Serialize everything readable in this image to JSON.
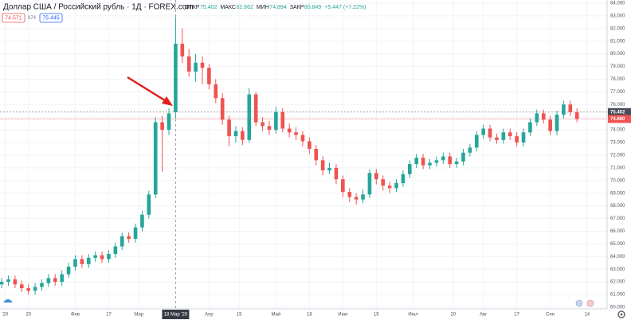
{
  "header": {
    "symbol": "Доллар США / Российский рубль · 1Д · FOREX.com",
    "ohlc": [
      {
        "label": "ОТКР",
        "value": "75.402"
      },
      {
        "label": "МАКС",
        "value": "82.862"
      },
      {
        "label": "МИН",
        "value": "74.894"
      },
      {
        "label": "ЗАКР",
        "value": "80.849"
      }
    ],
    "change": "+5.447 (+7.22%)",
    "bid": "74.571",
    "spread": "874",
    "ask": "75.445"
  },
  "chart_data": {
    "type": "candlestick",
    "up_color": "#26a69a",
    "down_color": "#ef5350",
    "grid": true,
    "x": [
      0,
      2,
      4,
      6,
      8,
      10,
      12,
      14,
      16,
      18,
      20,
      22,
      24,
      26,
      28,
      30,
      32,
      34,
      36,
      38,
      40,
      42,
      44,
      46,
      48,
      50,
      52,
      54,
      56,
      58,
      60,
      62,
      64,
      66,
      68,
      70,
      72,
      74,
      76,
      78,
      80,
      82,
      84,
      86,
      88,
      90,
      92,
      94,
      96,
      98,
      100,
      102,
      104,
      106,
      108,
      110,
      112,
      114,
      116,
      118,
      120,
      122,
      124,
      126,
      128,
      130,
      132,
      134,
      136,
      138,
      140,
      142,
      144,
      146,
      148,
      150,
      152,
      154,
      156,
      158,
      160,
      162,
      164,
      166,
      168,
      170,
      172
    ],
    "open": [
      61.8,
      62.0,
      62.2,
      61.8,
      61.5,
      61.3,
      61.6,
      61.9,
      62.3,
      62.0,
      62.6,
      63.2,
      63.8,
      63.4,
      63.9,
      64.1,
      63.8,
      64.2,
      64.8,
      65.6,
      65.4,
      66.3,
      67.3,
      68.9,
      74.6,
      74.0,
      75.4,
      80.8,
      79.8,
      78.6,
      79.3,
      78.9,
      77.6,
      76.5,
      74.8,
      73.5,
      73.9,
      73.2,
      76.8,
      74.6,
      74.3,
      74.0,
      75.4,
      74.1,
      73.8,
      73.6,
      73.1,
      72.5,
      71.6,
      70.8,
      71.0,
      70.1,
      69.1,
      68.7,
      68.5,
      68.9,
      70.6,
      70.1,
      69.6,
      69.4,
      69.8,
      70.5,
      71.3,
      71.8,
      71.2,
      71.4,
      71.6,
      71.9,
      71.3,
      71.5,
      72.2,
      72.6,
      73.6,
      74.1,
      73.4,
      73.2,
      73.8,
      73.5,
      73.0,
      73.8,
      74.6,
      75.3,
      74.8,
      73.9,
      75.2,
      76.0,
      75.4
    ],
    "high": [
      62.3,
      62.5,
      62.5,
      62.1,
      61.8,
      61.9,
      62.2,
      62.6,
      62.6,
      62.9,
      63.5,
      64.1,
      64.1,
      64.2,
      64.4,
      64.4,
      64.5,
      65.1,
      65.9,
      65.9,
      66.6,
      67.6,
      69.2,
      75.0,
      75.1,
      75.7,
      82.9,
      82.0,
      80.4,
      80.0,
      79.8,
      79.2,
      78.0,
      76.9,
      75.1,
      74.3,
      74.2,
      77.3,
      77.0,
      75.0,
      74.7,
      75.8,
      75.7,
      74.5,
      74.2,
      73.9,
      73.4,
      72.8,
      71.9,
      71.4,
      71.3,
      70.4,
      69.4,
      69.0,
      69.3,
      70.9,
      70.9,
      70.4,
      69.9,
      70.1,
      70.8,
      71.6,
      72.1,
      72.1,
      71.7,
      71.9,
      72.2,
      72.2,
      71.8,
      72.5,
      72.9,
      73.9,
      74.4,
      74.4,
      73.7,
      74.1,
      74.1,
      73.8,
      74.1,
      74.9,
      75.6,
      75.6,
      75.1,
      75.5,
      76.3,
      76.3,
      75.7
    ],
    "low": [
      61.5,
      61.7,
      61.5,
      61.2,
      61.0,
      61.0,
      61.3,
      61.6,
      61.7,
      61.7,
      62.3,
      62.9,
      63.1,
      63.1,
      63.6,
      63.5,
      63.5,
      63.9,
      64.5,
      65.1,
      65.1,
      66.0,
      67.0,
      68.6,
      70.7,
      73.6,
      74.9,
      79.3,
      78.2,
      77.8,
      77.6,
      77.2,
      76.1,
      74.4,
      72.7,
      73.0,
      72.8,
      73.0,
      74.3,
      73.9,
      73.6,
      73.7,
      73.8,
      73.4,
      73.2,
      72.7,
      72.1,
      71.2,
      70.4,
      70.5,
      69.7,
      68.7,
      68.3,
      68.1,
      68.2,
      68.6,
      69.7,
      69.2,
      69.0,
      69.1,
      69.5,
      70.2,
      71.0,
      70.9,
      70.9,
      71.1,
      71.3,
      71.0,
      71.0,
      71.2,
      71.9,
      72.3,
      73.3,
      73.1,
      72.9,
      72.9,
      73.2,
      72.7,
      72.7,
      73.5,
      74.3,
      74.5,
      73.6,
      73.6,
      74.9,
      75.1,
      74.6
    ],
    "close": [
      62.0,
      62.2,
      61.8,
      61.5,
      61.3,
      61.6,
      61.9,
      62.3,
      62.0,
      62.6,
      63.2,
      63.8,
      63.4,
      63.9,
      64.1,
      63.8,
      64.2,
      64.8,
      65.6,
      65.4,
      66.3,
      67.3,
      68.9,
      74.6,
      74.0,
      75.3,
      80.8,
      79.8,
      78.6,
      79.3,
      78.9,
      77.6,
      76.5,
      74.8,
      73.5,
      73.9,
      73.2,
      76.8,
      74.6,
      74.3,
      74.0,
      75.4,
      74.1,
      73.8,
      73.6,
      73.1,
      72.5,
      71.6,
      70.8,
      71.0,
      70.1,
      69.1,
      68.7,
      68.5,
      68.9,
      70.6,
      70.1,
      69.6,
      69.4,
      69.8,
      70.5,
      71.3,
      71.8,
      71.2,
      71.4,
      71.6,
      71.9,
      71.3,
      71.5,
      72.2,
      72.6,
      73.6,
      74.1,
      73.4,
      73.2,
      73.8,
      73.5,
      73.0,
      73.8,
      74.6,
      75.3,
      74.8,
      73.9,
      75.2,
      76.0,
      75.4,
      74.86
    ],
    "xlim": [
      -0.5,
      181
    ],
    "xticks": [
      {
        "value": 1,
        "label": "'20"
      },
      {
        "value": 8,
        "label": "20"
      },
      {
        "value": 22,
        "label": "Фев"
      },
      {
        "value": 32,
        "label": "17"
      },
      {
        "value": 41,
        "label": "Мар"
      },
      {
        "value": 62,
        "label": "Апр"
      },
      {
        "value": 71,
        "label": "15"
      },
      {
        "value": 82,
        "label": "Май"
      },
      {
        "value": 92,
        "label": "18"
      },
      {
        "value": 102,
        "label": "Июн"
      },
      {
        "value": 112,
        "label": "15"
      },
      {
        "value": 123,
        "label": "Июл"
      },
      {
        "value": 135,
        "label": "20"
      },
      {
        "value": 144,
        "label": "Авг"
      },
      {
        "value": 154,
        "label": "17"
      },
      {
        "value": 164,
        "label": "Сен"
      },
      {
        "value": 175,
        "label": "14"
      }
    ],
    "ylim": [
      59.87,
      84.25
    ],
    "yticks": [
      {
        "value": 60,
        "label": "60.000"
      },
      {
        "value": 61,
        "label": "61.000"
      },
      {
        "value": 62,
        "label": "62.000"
      },
      {
        "value": 63,
        "label": "63.000"
      },
      {
        "value": 64,
        "label": "64.000"
      },
      {
        "value": 65,
        "label": "65.000"
      },
      {
        "value": 66,
        "label": "66.000"
      },
      {
        "value": 67,
        "label": "67.000"
      },
      {
        "value": 68,
        "label": "68.000"
      },
      {
        "value": 69,
        "label": "69.000"
      },
      {
        "value": 70,
        "label": "70.000"
      },
      {
        "value": 71,
        "label": "71.000"
      },
      {
        "value": 72,
        "label": "72.000"
      },
      {
        "value": 73,
        "label": "73.000"
      },
      {
        "value": 74,
        "label": "74.000"
      },
      {
        "value": 75,
        "label": "75.000"
      },
      {
        "value": 76,
        "label": "76.000"
      },
      {
        "value": 77,
        "label": "77.000"
      },
      {
        "value": 78,
        "label": "78.000"
      },
      {
        "value": 79,
        "label": "79.000"
      },
      {
        "value": 80,
        "label": "80.000"
      },
      {
        "value": 81,
        "label": "81.000"
      },
      {
        "value": 82,
        "label": "82.000"
      },
      {
        "value": 83,
        "label": "83.000"
      },
      {
        "value": 84,
        "label": "84.000"
      }
    ],
    "crosshair": {
      "x": 52,
      "label": "18 Мар '20"
    },
    "price_lines": [
      {
        "value": 75.402,
        "label": "75.402",
        "color": "#4a4e59"
      },
      {
        "value": 74.86,
        "label": "74.860",
        "color": "#ef5350"
      }
    ]
  }
}
